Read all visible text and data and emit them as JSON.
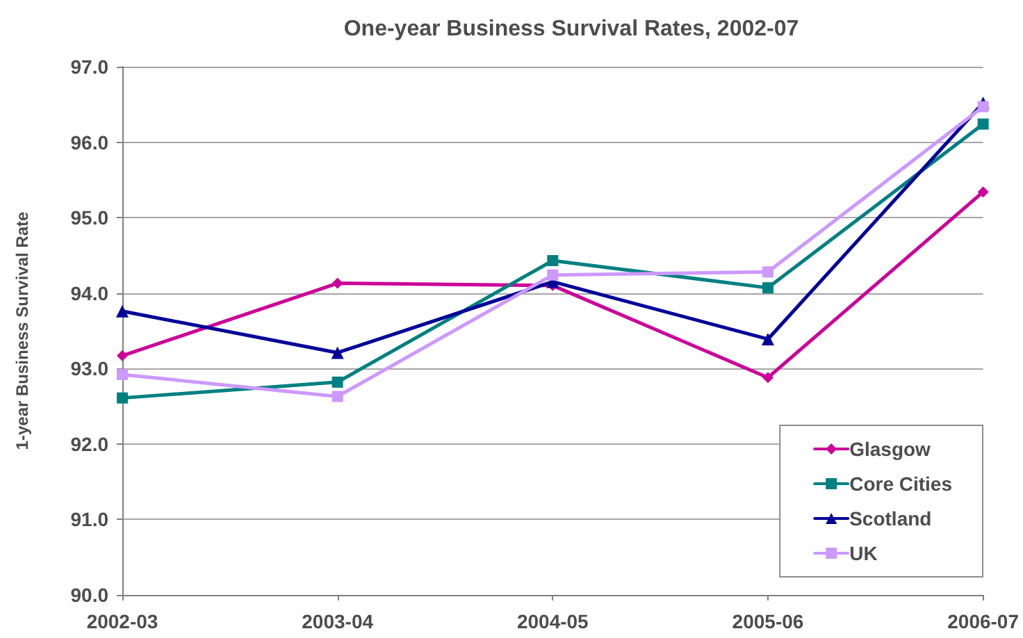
{
  "chart_data": {
    "type": "line",
    "title": "One-year Business Survival Rates, 2002-07",
    "ylabel": "1-year Business Survival Rate",
    "categories": [
      "2002-03",
      "2003-04",
      "2004-05",
      "2005-06",
      "2006-07"
    ],
    "series": [
      {
        "name": "Glasgow",
        "color": "#cc0099",
        "marker": "diamond",
        "values": [
          93.17,
          94.13,
          94.1,
          92.88,
          95.34
        ]
      },
      {
        "name": "Core Cities",
        "color": "#008080",
        "marker": "square",
        "values": [
          92.61,
          92.82,
          94.43,
          94.07,
          96.24
        ]
      },
      {
        "name": "Scotland",
        "color": "#000099",
        "marker": "triangle",
        "values": [
          93.76,
          93.21,
          94.15,
          93.39,
          96.52
        ]
      },
      {
        "name": "UK",
        "color": "#cc99ff",
        "marker": "square",
        "values": [
          92.92,
          92.63,
          94.24,
          94.28,
          96.47
        ]
      }
    ],
    "ylim": [
      90,
      97
    ],
    "yticks": [
      {
        "value": 90,
        "label": "90.0"
      },
      {
        "value": 91,
        "label": "91.0"
      },
      {
        "value": 92,
        "label": "92.0"
      },
      {
        "value": 93,
        "label": "93.0"
      },
      {
        "value": 94,
        "label": "94.0"
      },
      {
        "value": 95,
        "label": "95.0"
      },
      {
        "value": 96,
        "label": "96.0"
      },
      {
        "value": 97,
        "label": "97.0"
      }
    ],
    "grid": "y",
    "legend": "bottom right",
    "line_style": "solid"
  }
}
